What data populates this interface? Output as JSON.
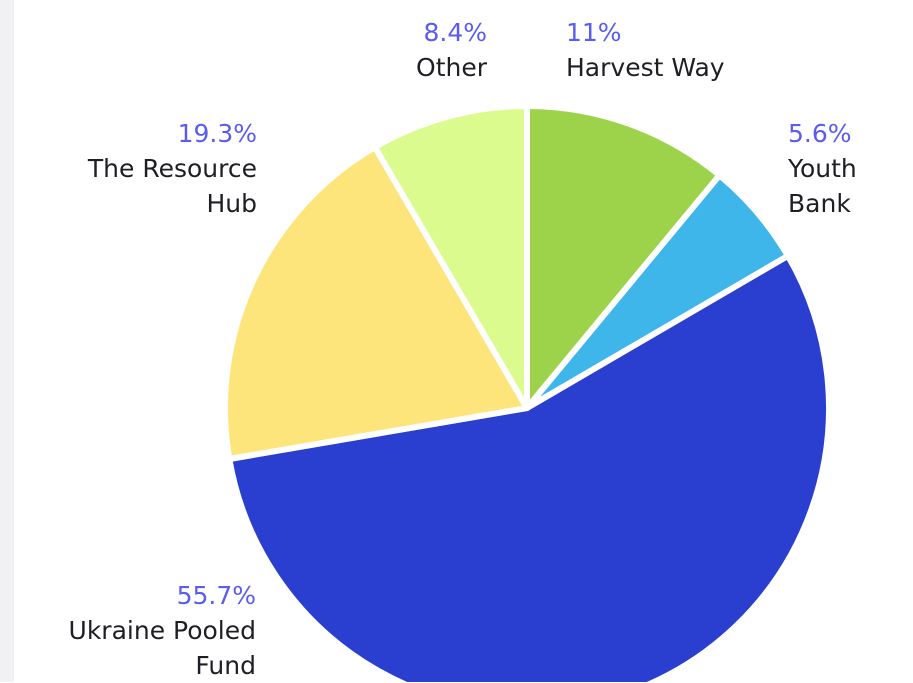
{
  "chart_data": {
    "type": "pie",
    "categories": [
      "Harvest Way",
      "Youth Bank",
      "Ukraine Pooled Fund",
      "The Resource Hub",
      "Other"
    ],
    "values": [
      11,
      5.6,
      55.7,
      19.3,
      8.4
    ],
    "value_labels": [
      "11%",
      "5.6%",
      "55.7%",
      "19.3%",
      "8.4%"
    ],
    "colors": [
      "#9dd34a",
      "#3fb6ea",
      "#2a3fcf",
      "#fde57b",
      "#dcfb8f"
    ]
  }
}
